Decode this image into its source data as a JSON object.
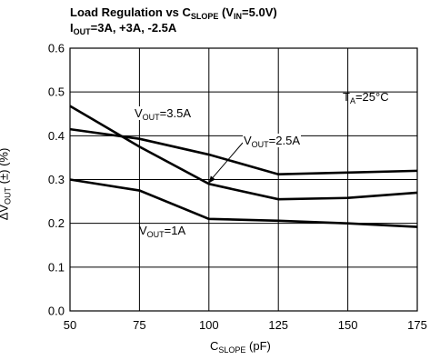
{
  "title": {
    "line1_a": "Load Regulation vs C",
    "line1_sub": "SLOPE",
    "line1_b": " (V",
    "line1_sub2": "IN",
    "line1_c": "=5.0V)",
    "line2_sub": "OUT",
    "line2_a": "I",
    "line2_b": "=3A, +3A, -2.5A"
  },
  "axes": {
    "xlabel_main": "C",
    "xlabel_sub": "SLOPE",
    "xlabel_unit": " (pF)",
    "ylabel_main": "ΔV",
    "ylabel_sub": "OUT",
    "ylabel_unit": " (±) (%)"
  },
  "annotations": {
    "temp_main": "T",
    "temp_sub": "A",
    "temp_val": "=25°C",
    "s1_main": "V",
    "s1_sub": "OUT",
    "s1_val": "=3.5A",
    "s2_main": "V",
    "s2_sub": "OUT",
    "s2_val": "=2.5A",
    "s3_main": "V",
    "s3_sub": "OUT",
    "s3_val": "=1A"
  },
  "chart_data": {
    "type": "line",
    "xlim": [
      50,
      175
    ],
    "ylim": [
      0.0,
      0.6
    ],
    "x_ticks": [
      50,
      75,
      100,
      125,
      150,
      175
    ],
    "y_ticks": [
      "0.0",
      "0.1",
      "0.2",
      "0.3",
      "0.4",
      "0.5",
      "0.6"
    ],
    "grid": true,
    "series": [
      {
        "name": "VOUT=3.5A",
        "x": [
          50,
          75,
          100,
          125,
          150,
          175
        ],
        "y": [
          0.468,
          0.375,
          0.29,
          0.255,
          0.258,
          0.27
        ]
      },
      {
        "name": "VOUT=2.5A",
        "x": [
          50,
          75,
          100,
          125,
          150,
          175
        ],
        "y": [
          0.415,
          0.393,
          0.357,
          0.312,
          0.316,
          0.32
        ]
      },
      {
        "name": "VOUT=1A",
        "x": [
          50,
          75,
          100,
          125,
          150,
          175
        ],
        "y": [
          0.3,
          0.275,
          0.21,
          0.206,
          0.2,
          0.192
        ]
      }
    ],
    "color": "#000000"
  }
}
